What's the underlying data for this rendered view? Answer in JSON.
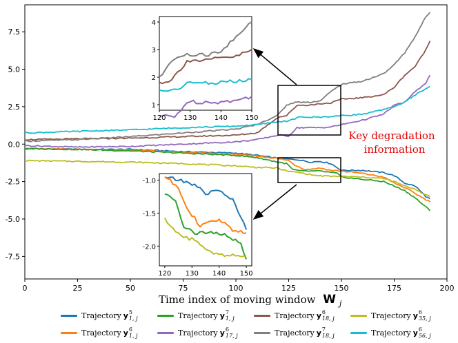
{
  "chart_data": {
    "type": "line",
    "xlabel": "Time index of moving window",
    "xlabel_symbol": "W",
    "xlabel_sub": "j",
    "xlim": [
      0,
      200
    ],
    "ylim": [
      -9,
      9.3
    ],
    "xticks": [
      "0",
      "25",
      "50",
      "75",
      "100",
      "125",
      "150",
      "175",
      "200"
    ],
    "yticks": [
      "7.5",
      "5.0",
      "2.5",
      "0.0",
      "-2.5",
      "-5.0",
      "-7.5"
    ],
    "annotation": [
      "Key degradation",
      "information"
    ],
    "colors": {
      "blue": "#1f77b4",
      "orange": "#ff7f0e",
      "green": "#2ca02c",
      "purple": "#9467bd",
      "brown": "#8c564b",
      "gray": "#7f7f7f",
      "olive": "#bcbd22",
      "cyan": "#17becf",
      "annotation": "#e00000"
    },
    "series": [
      {
        "name": "Trajectory y(5)(1,j)",
        "label": "Trajectory",
        "sym": "y",
        "sup": "5",
        "sub": "1, j",
        "color": "#1f77b4",
        "points": [
          [
            0,
            -0.3
          ],
          [
            25,
            -0.35
          ],
          [
            50,
            -0.35
          ],
          [
            75,
            -0.5
          ],
          [
            100,
            -0.6
          ],
          [
            110,
            -0.75
          ],
          [
            120,
            -0.95
          ],
          [
            125,
            -1.0
          ],
          [
            130,
            -1.05
          ],
          [
            135,
            -1.2
          ],
          [
            140,
            -1.15
          ],
          [
            145,
            -1.3
          ],
          [
            150,
            -1.75
          ],
          [
            160,
            -1.75
          ],
          [
            170,
            -1.9
          ],
          [
            175,
            -2.1
          ],
          [
            180,
            -2.6
          ],
          [
            185,
            -2.8
          ],
          [
            190,
            -3.5
          ],
          [
            192,
            -3.65
          ]
        ]
      },
      {
        "name": "Trajectory y(6)(1,j)",
        "label": "Trajectory",
        "sym": "y",
        "sup": "6",
        "sub": "1, j",
        "color": "#ff7f0e",
        "points": [
          [
            0,
            -0.3
          ],
          [
            25,
            -0.35
          ],
          [
            50,
            -0.4
          ],
          [
            75,
            -0.55
          ],
          [
            100,
            -0.7
          ],
          [
            110,
            -0.8
          ],
          [
            120,
            -0.95
          ],
          [
            125,
            -1.1
          ],
          [
            128,
            -1.4
          ],
          [
            133,
            -1.7
          ],
          [
            140,
            -1.6
          ],
          [
            145,
            -1.75
          ],
          [
            150,
            -1.8
          ],
          [
            160,
            -1.95
          ],
          [
            170,
            -2.2
          ],
          [
            175,
            -2.6
          ],
          [
            180,
            -2.9
          ],
          [
            185,
            -3.3
          ],
          [
            190,
            -3.7
          ],
          [
            192,
            -3.85
          ]
        ]
      },
      {
        "name": "Trajectory y(7)(1,j)",
        "label": "Trajectory",
        "sym": "y",
        "sup": "7",
        "sub": "1, j",
        "color": "#2ca02c",
        "points": [
          [
            0,
            -0.3
          ],
          [
            25,
            -0.35
          ],
          [
            50,
            -0.45
          ],
          [
            75,
            -0.6
          ],
          [
            100,
            -0.75
          ],
          [
            110,
            -0.9
          ],
          [
            120,
            -1.2
          ],
          [
            124,
            -1.3
          ],
          [
            127,
            -1.7
          ],
          [
            131,
            -1.8
          ],
          [
            140,
            -1.8
          ],
          [
            148,
            -1.95
          ],
          [
            150,
            -2.2
          ],
          [
            160,
            -2.35
          ],
          [
            170,
            -2.5
          ],
          [
            175,
            -2.8
          ],
          [
            180,
            -3.1
          ],
          [
            185,
            -3.6
          ],
          [
            190,
            -4.2
          ],
          [
            192,
            -4.45
          ]
        ]
      },
      {
        "name": "Trajectory y(6)(17,j)",
        "label": "Trajectory",
        "sym": "y",
        "sup": "6",
        "sub": "17, j",
        "color": "#9467bd",
        "points": [
          [
            0,
            -0.1
          ],
          [
            25,
            -0.2
          ],
          [
            50,
            -0.15
          ],
          [
            75,
            0.0
          ],
          [
            100,
            0.15
          ],
          [
            110,
            0.3
          ],
          [
            120,
            0.6
          ],
          [
            125,
            0.55
          ],
          [
            129,
            1.1
          ],
          [
            135,
            1.1
          ],
          [
            140,
            1.1
          ],
          [
            145,
            1.15
          ],
          [
            150,
            1.3
          ],
          [
            160,
            1.6
          ],
          [
            170,
            2.0
          ],
          [
            175,
            2.6
          ],
          [
            180,
            2.8
          ],
          [
            185,
            3.5
          ],
          [
            190,
            4.1
          ],
          [
            192,
            4.6
          ]
        ]
      },
      {
        "name": "Trajectory y(6)(18,j)",
        "label": "Trajectory",
        "sym": "y",
        "sup": "6",
        "sub": "18, j",
        "color": "#8c564b",
        "points": [
          [
            0,
            0.3
          ],
          [
            25,
            0.35
          ],
          [
            50,
            0.4
          ],
          [
            75,
            0.5
          ],
          [
            100,
            0.6
          ],
          [
            110,
            0.75
          ],
          [
            120,
            1.8
          ],
          [
            124,
            1.9
          ],
          [
            129,
            2.6
          ],
          [
            135,
            2.6
          ],
          [
            140,
            2.7
          ],
          [
            145,
            2.75
          ],
          [
            150,
            3.0
          ],
          [
            160,
            3.1
          ],
          [
            170,
            3.3
          ],
          [
            175,
            3.8
          ],
          [
            180,
            4.6
          ],
          [
            185,
            5.2
          ],
          [
            190,
            6.3
          ],
          [
            192,
            6.9
          ]
        ]
      },
      {
        "name": "Trajectory y(7)(18,j)",
        "label": "Trajectory",
        "sym": "y",
        "sup": "7",
        "sub": "18, j",
        "color": "#7f7f7f",
        "points": [
          [
            0,
            0.2
          ],
          [
            25,
            0.3
          ],
          [
            50,
            0.5
          ],
          [
            75,
            0.75
          ],
          [
            100,
            1.0
          ],
          [
            110,
            1.3
          ],
          [
            120,
            1.95
          ],
          [
            124,
            2.6
          ],
          [
            128,
            2.8
          ],
          [
            135,
            2.8
          ],
          [
            140,
            2.9
          ],
          [
            145,
            3.5
          ],
          [
            150,
            4.0
          ],
          [
            160,
            4.2
          ],
          [
            170,
            4.7
          ],
          [
            175,
            5.3
          ],
          [
            180,
            6.1
          ],
          [
            185,
            7.2
          ],
          [
            190,
            8.5
          ],
          [
            192,
            8.8
          ]
        ]
      },
      {
        "name": "Trajectory y(6)(35,j)",
        "label": "Trajectory",
        "sym": "y",
        "sup": "6",
        "sub": "35, j",
        "color": "#bcbd22",
        "points": [
          [
            0,
            -1.1
          ],
          [
            25,
            -1.15
          ],
          [
            50,
            -1.2
          ],
          [
            75,
            -1.3
          ],
          [
            100,
            -1.45
          ],
          [
            110,
            -1.55
          ],
          [
            120,
            -1.6
          ],
          [
            124,
            -1.8
          ],
          [
            130,
            -1.9
          ],
          [
            138,
            -2.1
          ],
          [
            145,
            -2.15
          ],
          [
            150,
            -2.15
          ],
          [
            160,
            -2.2
          ],
          [
            170,
            -2.3
          ],
          [
            175,
            -2.5
          ],
          [
            180,
            -2.8
          ],
          [
            185,
            -3.0
          ],
          [
            190,
            -3.4
          ],
          [
            192,
            -3.5
          ]
        ]
      },
      {
        "name": "Trajectory y(6)(56,j)",
        "label": "Trajectory",
        "sym": "y",
        "sup": "6",
        "sub": "56, j",
        "color": "#17becf",
        "points": [
          [
            0,
            0.75
          ],
          [
            25,
            0.85
          ],
          [
            50,
            0.95
          ],
          [
            75,
            1.1
          ],
          [
            100,
            1.2
          ],
          [
            110,
            1.3
          ],
          [
            120,
            1.5
          ],
          [
            125,
            1.55
          ],
          [
            130,
            1.8
          ],
          [
            135,
            1.8
          ],
          [
            140,
            1.8
          ],
          [
            145,
            1.85
          ],
          [
            150,
            1.9
          ],
          [
            160,
            2.0
          ],
          [
            170,
            2.3
          ],
          [
            175,
            2.5
          ],
          [
            180,
            2.8
          ],
          [
            185,
            3.3
          ],
          [
            190,
            3.7
          ],
          [
            192,
            3.85
          ]
        ]
      }
    ],
    "inset_upper": {
      "xlim": [
        120,
        150
      ],
      "ylim": [
        0.8,
        4.2
      ],
      "xticks": [
        "120",
        "130",
        "140",
        "150"
      ],
      "yticks": [
        "4",
        "3",
        "2",
        "1"
      ],
      "series_indices": [
        3,
        4,
        5,
        7
      ]
    },
    "inset_lower": {
      "xlim": [
        118,
        152
      ],
      "ylim": [
        -2.3,
        -0.9
      ],
      "xticks": [
        "120",
        "130",
        "140",
        "150"
      ],
      "yticks": [
        "-1.0",
        "-1.5",
        "-2.0"
      ],
      "series_indices": [
        0,
        1,
        2,
        6
      ]
    }
  }
}
